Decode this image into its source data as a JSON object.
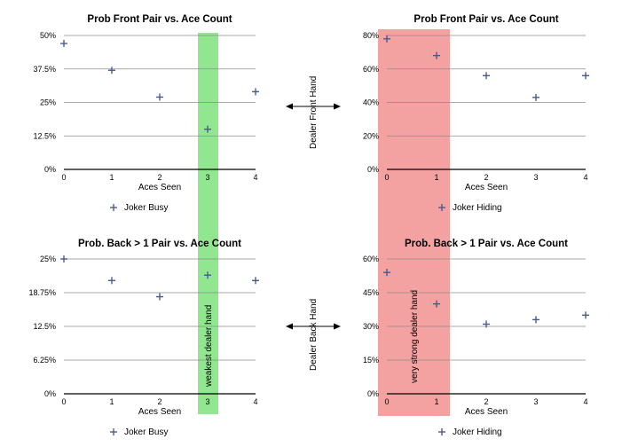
{
  "colors": {
    "series_marker": "#4a5a90",
    "band_green": "#7de37d",
    "band_red": "#f18a8a",
    "grid": "#8c8c8c"
  },
  "side_labels": {
    "front": "Dealer Front Hand",
    "back": "Dealer Back Hand",
    "arrow_icon": "double-arrow-icon"
  },
  "annotations": {
    "weakest": "weakest dealer hand",
    "very_strong": "very strong dealer hand"
  },
  "chart_data": [
    {
      "id": "tl",
      "type": "scatter",
      "title": "Prob Front Pair vs. Ace Count",
      "xlabel": "Aces Seen",
      "ylabel": "",
      "x": [
        0,
        1,
        2,
        3,
        4
      ],
      "values": [
        0.47,
        0.37,
        0.27,
        0.15,
        0.29
      ],
      "xlim": [
        0,
        4
      ],
      "ylim": [
        0,
        0.5
      ],
      "yticks": [
        0,
        0.125,
        0.25,
        0.375,
        0.5
      ],
      "ytick_labels": [
        "0%",
        "12.5%",
        "25%",
        "37.5%",
        "50%"
      ],
      "xtick_labels": [
        "0",
        "1",
        "2",
        "3",
        "4"
      ],
      "legend": "Joker Busy",
      "highlight": {
        "x": 3,
        "color": "green",
        "label": ""
      }
    },
    {
      "id": "tr",
      "type": "scatter",
      "title": "Prob Front Pair vs. Ace Count",
      "xlabel": "Aces Seen",
      "ylabel": "",
      "x": [
        0,
        1,
        2,
        3,
        4
      ],
      "values": [
        0.78,
        0.68,
        0.56,
        0.43,
        0.56
      ],
      "xlim": [
        0,
        4
      ],
      "ylim": [
        0,
        0.8
      ],
      "yticks": [
        0,
        0.2,
        0.4,
        0.6,
        0.8
      ],
      "ytick_labels": [
        "0%",
        "20%",
        "40%",
        "60%",
        "80%"
      ],
      "xtick_labels": [
        "0",
        "1",
        "2",
        "3",
        "4"
      ],
      "legend": "Joker Hiding",
      "highlight": {
        "x_range": [
          0,
          1
        ],
        "color": "red",
        "label": ""
      }
    },
    {
      "id": "bl",
      "type": "scatter",
      "title": "Prob. Back > 1 Pair vs. Ace Count",
      "xlabel": "Aces Seen",
      "ylabel": "",
      "x": [
        0,
        1,
        2,
        3,
        4
      ],
      "values": [
        0.25,
        0.21,
        0.18,
        0.22,
        0.21
      ],
      "xlim": [
        0,
        4
      ],
      "ylim": [
        0,
        0.25
      ],
      "yticks": [
        0,
        0.0625,
        0.125,
        0.1875,
        0.25
      ],
      "ytick_labels": [
        "0%",
        "6.25%",
        "12.5%",
        "18.75%",
        "25%"
      ],
      "xtick_labels": [
        "0",
        "1",
        "2",
        "3",
        "4"
      ],
      "legend": "Joker Busy",
      "highlight": {
        "x": 3,
        "color": "green",
        "label": "weakest dealer hand"
      }
    },
    {
      "id": "br",
      "type": "scatter",
      "title": "Prob. Back > 1 Pair vs. Ace Count",
      "xlabel": "Aces Seen",
      "ylabel": "",
      "x": [
        0,
        1,
        2,
        3,
        4
      ],
      "values": [
        0.54,
        0.4,
        0.31,
        0.33,
        0.35
      ],
      "xlim": [
        0,
        4
      ],
      "ylim": [
        0,
        0.6
      ],
      "yticks": [
        0,
        0.15,
        0.3,
        0.45,
        0.6
      ],
      "ytick_labels": [
        "0%",
        "15%",
        "30%",
        "45%",
        "60%"
      ],
      "xtick_labels": [
        "0",
        "1",
        "2",
        "3",
        "4"
      ],
      "legend": "Joker Hiding",
      "highlight": {
        "x_range": [
          0,
          1
        ],
        "color": "red",
        "label": "very strong dealer hand"
      }
    }
  ]
}
